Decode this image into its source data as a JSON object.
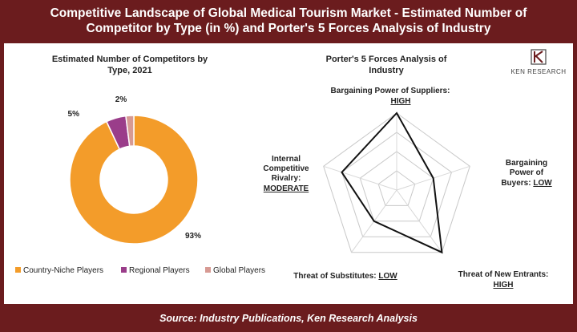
{
  "header": {
    "title": "Competitive Landscape of Global Medical Tourism Market - Estimated Number of Competitor by Type (in %) and Porter's 5 Forces Analysis of Industry"
  },
  "footer": {
    "source": "Source: Industry Publications, Ken Research Analysis"
  },
  "logo": {
    "text": "KEN RESEARCH"
  },
  "colors": {
    "frame": "#6b1c1e",
    "country_niche": "#f39c2a",
    "regional": "#9a3d8a",
    "global": "#d79a93"
  },
  "chart_data": [
    {
      "type": "pie",
      "title_line1": "Estimated Number of Competitors by",
      "title_line2": "Type, 2021",
      "categories": [
        "Country-Niche Players",
        "Regional Players",
        "Global Players"
      ],
      "values": [
        93,
        5,
        2
      ],
      "value_labels": [
        "93%",
        "5%",
        "2%"
      ],
      "legend_position": "bottom"
    },
    {
      "type": "radar",
      "title_line1": "Porter's 5 Forces Analysis of",
      "title_line2": "Industry",
      "levels": 4,
      "axes": [
        {
          "line1": "Bargaining Power of Suppliers:",
          "line2": "",
          "rating": "HIGH",
          "value": 4
        },
        {
          "line1": "Bargaining",
          "line2": "Power of",
          "line3": "Buyers: ",
          "rating": "LOW",
          "value": 2
        },
        {
          "line1": "Threat of New Entrants:",
          "rating": "HIGH",
          "value": 4
        },
        {
          "line1": "Threat of Substitutes: ",
          "rating": "LOW",
          "value": 2
        },
        {
          "line1": "Internal",
          "line2": "Competitive",
          "line3": "Rivalry:",
          "rating": "MODERATE",
          "value": 3
        }
      ]
    }
  ]
}
